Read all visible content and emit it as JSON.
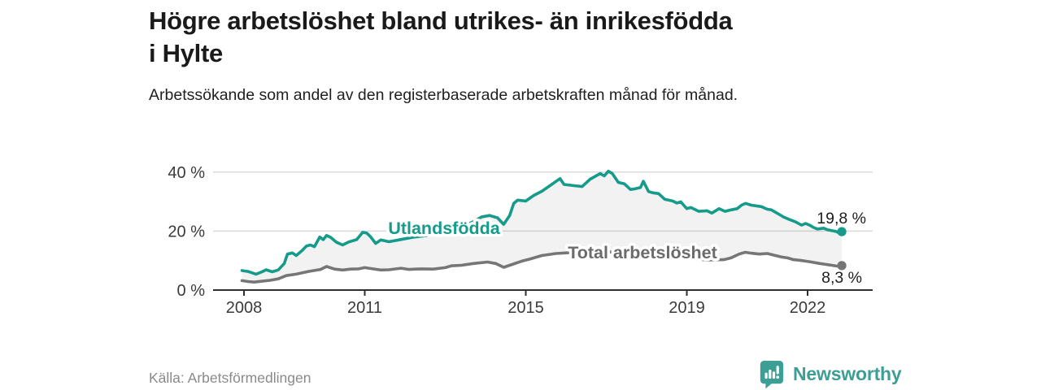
{
  "header": {
    "title": "Högre arbetslöshet bland utrikes- än inrikesfödda i Hylte",
    "subtitle": "Arbetssökande som andel av den registerbaserade arbetskraften månad för månad."
  },
  "chart_data": {
    "type": "line",
    "title": "Högre arbetslöshet bland utrikes- än inrikesfödda i Hylte",
    "subtitle": "Arbetssökande som andel av den registerbaserade arbetskraften månad för månad.",
    "xlabel": "",
    "ylabel": "",
    "x_unit": "year (monthly data)",
    "y_unit": "%",
    "xlim": [
      2007.9,
      2023.1
    ],
    "ylim": [
      0,
      43
    ],
    "grid": "horizontal",
    "x_ticks": [
      {
        "value": 2008,
        "label": "2008"
      },
      {
        "value": 2011,
        "label": "2011"
      },
      {
        "value": 2015,
        "label": "2015"
      },
      {
        "value": 2019,
        "label": "2019"
      },
      {
        "value": 2022,
        "label": "2022"
      }
    ],
    "y_ticks": [
      {
        "value": 0,
        "label": "0 %"
      },
      {
        "value": 20,
        "label": "20 %"
      },
      {
        "value": 40,
        "label": "40 %"
      }
    ],
    "fill_between_series": true,
    "series": [
      {
        "name": "Utlandsfödda",
        "color": "#169b8b",
        "end_label": "19,8 %",
        "end_value": 19.8,
        "points": [
          [
            2007.95,
            6.6
          ],
          [
            2008.1,
            6.3
          ],
          [
            2008.3,
            5.4
          ],
          [
            2008.45,
            6.2
          ],
          [
            2008.55,
            6.9
          ],
          [
            2008.7,
            6.2
          ],
          [
            2008.85,
            6.8
          ],
          [
            2009.0,
            9.0
          ],
          [
            2009.08,
            12.2
          ],
          [
            2009.2,
            12.6
          ],
          [
            2009.3,
            11.7
          ],
          [
            2009.45,
            13.5
          ],
          [
            2009.55,
            14.9
          ],
          [
            2009.65,
            15.3
          ],
          [
            2009.75,
            14.7
          ],
          [
            2009.88,
            18.0
          ],
          [
            2009.97,
            17.1
          ],
          [
            2010.05,
            18.5
          ],
          [
            2010.15,
            17.9
          ],
          [
            2010.3,
            16.2
          ],
          [
            2010.45,
            15.3
          ],
          [
            2010.6,
            16.3
          ],
          [
            2010.8,
            17.1
          ],
          [
            2010.95,
            19.6
          ],
          [
            2011.05,
            19.3
          ],
          [
            2011.15,
            18.0
          ],
          [
            2011.27,
            15.8
          ],
          [
            2011.4,
            17.0
          ],
          [
            2011.6,
            16.4
          ],
          [
            2011.8,
            16.9
          ],
          [
            2012.0,
            17.4
          ],
          [
            2012.2,
            17.9
          ],
          [
            2012.5,
            18.4
          ],
          [
            2012.8,
            19.2
          ],
          [
            2013.1,
            20.1
          ],
          [
            2013.4,
            21.4
          ],
          [
            2013.7,
            23.2
          ],
          [
            2013.9,
            24.8
          ],
          [
            2014.1,
            25.3
          ],
          [
            2014.3,
            24.5
          ],
          [
            2014.45,
            22.3
          ],
          [
            2014.6,
            25.3
          ],
          [
            2014.7,
            29.4
          ],
          [
            2014.8,
            30.5
          ],
          [
            2015.0,
            30.2
          ],
          [
            2015.2,
            32.1
          ],
          [
            2015.4,
            33.5
          ],
          [
            2015.6,
            35.4
          ],
          [
            2015.85,
            37.8
          ],
          [
            2015.95,
            35.8
          ],
          [
            2016.2,
            35.4
          ],
          [
            2016.4,
            35.1
          ],
          [
            2016.6,
            37.6
          ],
          [
            2016.85,
            39.5
          ],
          [
            2016.95,
            38.7
          ],
          [
            2017.05,
            40.3
          ],
          [
            2017.15,
            39.5
          ],
          [
            2017.3,
            36.5
          ],
          [
            2017.45,
            36.0
          ],
          [
            2017.6,
            34.1
          ],
          [
            2017.7,
            34.3
          ],
          [
            2017.85,
            34.8
          ],
          [
            2017.92,
            36.9
          ],
          [
            2018.05,
            33.4
          ],
          [
            2018.15,
            33.0
          ],
          [
            2018.3,
            32.7
          ],
          [
            2018.45,
            30.8
          ],
          [
            2018.65,
            30.2
          ],
          [
            2018.75,
            29.5
          ],
          [
            2018.85,
            29.9
          ],
          [
            2019.0,
            27.6
          ],
          [
            2019.1,
            28.0
          ],
          [
            2019.3,
            26.7
          ],
          [
            2019.5,
            26.9
          ],
          [
            2019.62,
            26.1
          ],
          [
            2019.8,
            27.6
          ],
          [
            2019.95,
            26.7
          ],
          [
            2020.1,
            27.2
          ],
          [
            2020.25,
            27.6
          ],
          [
            2020.36,
            28.8
          ],
          [
            2020.46,
            29.4
          ],
          [
            2020.6,
            28.8
          ],
          [
            2020.7,
            28.6
          ],
          [
            2020.85,
            28.3
          ],
          [
            2021.0,
            27.4
          ],
          [
            2021.1,
            27.2
          ],
          [
            2021.25,
            26.0
          ],
          [
            2021.4,
            24.8
          ],
          [
            2021.55,
            23.9
          ],
          [
            2021.7,
            23.1
          ],
          [
            2021.85,
            22.0
          ],
          [
            2021.95,
            22.6
          ],
          [
            2022.05,
            22.0
          ],
          [
            2022.15,
            21.2
          ],
          [
            2022.25,
            20.7
          ],
          [
            2022.4,
            21.0
          ],
          [
            2022.5,
            20.4
          ],
          [
            2022.7,
            19.9
          ],
          [
            2022.78,
            19.4
          ],
          [
            2022.85,
            19.8
          ]
        ]
      },
      {
        "name": "Total arbetslöshet",
        "color": "#767676",
        "end_label": "8,3 %",
        "end_value": 8.3,
        "points": [
          [
            2007.95,
            3.2
          ],
          [
            2008.1,
            2.9
          ],
          [
            2008.25,
            2.7
          ],
          [
            2008.45,
            3.0
          ],
          [
            2008.65,
            3.3
          ],
          [
            2008.85,
            3.8
          ],
          [
            2009.05,
            4.9
          ],
          [
            2009.3,
            5.4
          ],
          [
            2009.6,
            6.3
          ],
          [
            2009.9,
            7.0
          ],
          [
            2010.05,
            8.0
          ],
          [
            2010.25,
            7.1
          ],
          [
            2010.45,
            6.8
          ],
          [
            2010.65,
            7.1
          ],
          [
            2010.85,
            7.2
          ],
          [
            2011.0,
            7.6
          ],
          [
            2011.2,
            7.2
          ],
          [
            2011.4,
            6.8
          ],
          [
            2011.6,
            6.9
          ],
          [
            2011.9,
            7.4
          ],
          [
            2012.1,
            7.0
          ],
          [
            2012.4,
            7.2
          ],
          [
            2012.7,
            7.1
          ],
          [
            2013.0,
            7.6
          ],
          [
            2013.15,
            8.2
          ],
          [
            2013.4,
            8.4
          ],
          [
            2013.7,
            9.0
          ],
          [
            2014.05,
            9.5
          ],
          [
            2014.25,
            9.0
          ],
          [
            2014.45,
            7.7
          ],
          [
            2014.6,
            8.4
          ],
          [
            2014.9,
            9.8
          ],
          [
            2015.1,
            10.5
          ],
          [
            2015.4,
            11.7
          ],
          [
            2015.75,
            12.4
          ],
          [
            2016.1,
            12.7
          ],
          [
            2016.5,
            12.9
          ],
          [
            2017.0,
            13.0
          ],
          [
            2017.5,
            12.6
          ],
          [
            2018.0,
            12.0
          ],
          [
            2018.5,
            11.4
          ],
          [
            2019.0,
            10.8
          ],
          [
            2019.5,
            10.2
          ],
          [
            2019.92,
            10.3
          ],
          [
            2020.1,
            10.9
          ],
          [
            2020.3,
            12.2
          ],
          [
            2020.45,
            12.8
          ],
          [
            2020.6,
            12.5
          ],
          [
            2020.8,
            12.2
          ],
          [
            2021.0,
            12.4
          ],
          [
            2021.2,
            11.7
          ],
          [
            2021.35,
            11.2
          ],
          [
            2021.5,
            10.9
          ],
          [
            2021.65,
            10.3
          ],
          [
            2021.8,
            10.1
          ],
          [
            2021.95,
            9.8
          ],
          [
            2022.1,
            9.5
          ],
          [
            2022.3,
            9.0
          ],
          [
            2022.45,
            8.7
          ],
          [
            2022.6,
            8.4
          ],
          [
            2022.75,
            8.1
          ],
          [
            2022.85,
            8.3
          ]
        ]
      }
    ]
  },
  "footer": {
    "source": "Källa: Arbetsförmedlingen",
    "brand": "Newsworthy"
  },
  "colors": {
    "accent_teal": "#169b8b",
    "series_gray": "#767676",
    "brand_teal": "#3d9e96",
    "grid": "#dbdbdb",
    "axis": "#2e2e2e",
    "axis_text": "#3a3a3a",
    "band_fill": "rgba(0,0,0,0.05)",
    "title_text": "#1a1a1a",
    "source_text": "#8a8a8a"
  }
}
